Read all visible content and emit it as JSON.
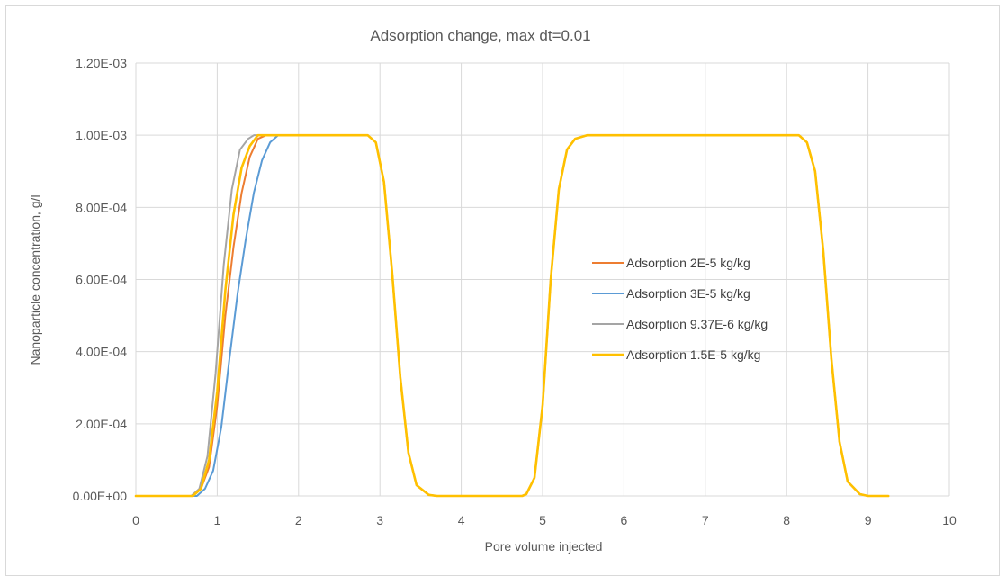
{
  "chart_data": {
    "type": "line",
    "title": "Adsorption change, max dt=0.01",
    "xlabel": "Pore volume injected",
    "ylabel": "Nanoparticle concentration, g/l",
    "xlim": [
      0,
      10
    ],
    "ylim": [
      0,
      0.0012
    ],
    "x_ticks": [
      "0",
      "1",
      "2",
      "3",
      "4",
      "5",
      "6",
      "7",
      "8",
      "9",
      "10"
    ],
    "y_ticks": [
      "0.00E+00",
      "2.00E-04",
      "4.00E-04",
      "6.00E-04",
      "8.00E-04",
      "1.00E-03",
      "1.20E-03"
    ],
    "grid": true,
    "legend_position": "right",
    "series": [
      {
        "name": "Adsorption 2E-5 kg/kg",
        "color": "#ED7D31",
        "points": [
          [
            0,
            0
          ],
          [
            0.7,
            0
          ],
          [
            0.8,
            2e-05
          ],
          [
            0.9,
            8e-05
          ],
          [
            1.0,
            0.00025
          ],
          [
            1.1,
            0.0005
          ],
          [
            1.2,
            0.00069
          ],
          [
            1.3,
            0.00084
          ],
          [
            1.4,
            0.00094
          ],
          [
            1.5,
            0.00099
          ],
          [
            1.6,
            0.001
          ],
          [
            2.85,
            0.001
          ],
          [
            2.95,
            0.00098
          ],
          [
            3.05,
            0.00087
          ],
          [
            3.15,
            0.00062
          ],
          [
            3.25,
            0.00033
          ],
          [
            3.35,
            0.00012
          ],
          [
            3.45,
            3e-05
          ],
          [
            3.6,
            3e-06
          ],
          [
            3.7,
            0
          ],
          [
            4.75,
            0
          ],
          [
            4.8,
            5e-06
          ],
          [
            4.9,
            5e-05
          ],
          [
            5.0,
            0.00025
          ],
          [
            5.1,
            0.0006
          ],
          [
            5.2,
            0.00085
          ],
          [
            5.3,
            0.00096
          ],
          [
            5.4,
            0.00099
          ],
          [
            5.55,
            0.001
          ],
          [
            8.15,
            0.001
          ],
          [
            8.25,
            0.00098
          ],
          [
            8.35,
            0.0009
          ],
          [
            8.45,
            0.00068
          ],
          [
            8.55,
            0.00038
          ],
          [
            8.65,
            0.00015
          ],
          [
            8.75,
            4e-05
          ],
          [
            8.9,
            5e-06
          ],
          [
            9.0,
            0
          ],
          [
            9.25,
            0
          ]
        ]
      },
      {
        "name": "Adsorption 3E-5 kg/kg",
        "color": "#5B9BD5",
        "points": [
          [
            0,
            0
          ],
          [
            0.75,
            0
          ],
          [
            0.85,
            2e-05
          ],
          [
            0.95,
            7e-05
          ],
          [
            1.05,
            0.00019
          ],
          [
            1.15,
            0.00038
          ],
          [
            1.25,
            0.00056
          ],
          [
            1.35,
            0.00071
          ],
          [
            1.45,
            0.00084
          ],
          [
            1.55,
            0.00093
          ],
          [
            1.65,
            0.00098
          ],
          [
            1.75,
            0.001
          ],
          [
            2.85,
            0.001
          ],
          [
            2.95,
            0.00098
          ],
          [
            3.05,
            0.00087
          ],
          [
            3.15,
            0.00062
          ],
          [
            3.25,
            0.00033
          ],
          [
            3.35,
            0.00012
          ],
          [
            3.45,
            3e-05
          ],
          [
            3.6,
            3e-06
          ],
          [
            3.7,
            0
          ],
          [
            4.75,
            0
          ],
          [
            4.8,
            5e-06
          ],
          [
            4.9,
            5e-05
          ],
          [
            5.0,
            0.00025
          ],
          [
            5.1,
            0.0006
          ],
          [
            5.2,
            0.00085
          ],
          [
            5.3,
            0.00096
          ],
          [
            5.4,
            0.00099
          ],
          [
            5.55,
            0.001
          ],
          [
            8.15,
            0.001
          ],
          [
            8.25,
            0.00098
          ],
          [
            8.35,
            0.0009
          ],
          [
            8.45,
            0.00068
          ],
          [
            8.55,
            0.00038
          ],
          [
            8.65,
            0.00015
          ],
          [
            8.75,
            4e-05
          ],
          [
            8.9,
            5e-06
          ],
          [
            9.0,
            0
          ],
          [
            9.25,
            0
          ]
        ]
      },
      {
        "name": "Adsorption 9.37E-6 kg/kg",
        "color": "#A5A5A5",
        "points": [
          [
            0,
            0
          ],
          [
            0.68,
            0
          ],
          [
            0.78,
            2e-05
          ],
          [
            0.88,
            0.00011
          ],
          [
            0.98,
            0.00034
          ],
          [
            1.08,
            0.00064
          ],
          [
            1.18,
            0.00085
          ],
          [
            1.28,
            0.00096
          ],
          [
            1.38,
            0.00099
          ],
          [
            1.45,
            0.001
          ],
          [
            2.85,
            0.001
          ],
          [
            2.95,
            0.00098
          ],
          [
            3.05,
            0.00087
          ],
          [
            3.15,
            0.00062
          ],
          [
            3.25,
            0.00033
          ],
          [
            3.35,
            0.00012
          ],
          [
            3.45,
            3e-05
          ],
          [
            3.6,
            3e-06
          ],
          [
            3.7,
            0
          ],
          [
            4.75,
            0
          ],
          [
            4.8,
            5e-06
          ],
          [
            4.9,
            5e-05
          ],
          [
            5.0,
            0.00025
          ],
          [
            5.1,
            0.0006
          ],
          [
            5.2,
            0.00085
          ],
          [
            5.3,
            0.00096
          ],
          [
            5.4,
            0.00099
          ],
          [
            5.55,
            0.001
          ],
          [
            8.15,
            0.001
          ],
          [
            8.25,
            0.00098
          ],
          [
            8.35,
            0.0009
          ],
          [
            8.45,
            0.00068
          ],
          [
            8.55,
            0.00038
          ],
          [
            8.65,
            0.00015
          ],
          [
            8.75,
            4e-05
          ],
          [
            8.9,
            5e-06
          ],
          [
            9.0,
            0
          ],
          [
            9.25,
            0
          ]
        ]
      },
      {
        "name": "Adsorption 1.5E-5 kg/kg",
        "color": "#FFC000",
        "points": [
          [
            0,
            0
          ],
          [
            0.7,
            0
          ],
          [
            0.8,
            2e-05
          ],
          [
            0.9,
            0.0001
          ],
          [
            1.0,
            0.00029
          ],
          [
            1.1,
            0.00057
          ],
          [
            1.2,
            0.00078
          ],
          [
            1.3,
            0.00091
          ],
          [
            1.4,
            0.00097
          ],
          [
            1.5,
            0.001
          ],
          [
            2.85,
            0.001
          ],
          [
            2.95,
            0.00098
          ],
          [
            3.05,
            0.00087
          ],
          [
            3.15,
            0.00062
          ],
          [
            3.25,
            0.00033
          ],
          [
            3.35,
            0.00012
          ],
          [
            3.45,
            3e-05
          ],
          [
            3.6,
            3e-06
          ],
          [
            3.7,
            0
          ],
          [
            4.75,
            0
          ],
          [
            4.8,
            5e-06
          ],
          [
            4.9,
            5e-05
          ],
          [
            5.0,
            0.00025
          ],
          [
            5.1,
            0.0006
          ],
          [
            5.2,
            0.00085
          ],
          [
            5.3,
            0.00096
          ],
          [
            5.4,
            0.00099
          ],
          [
            5.55,
            0.001
          ],
          [
            8.15,
            0.001
          ],
          [
            8.25,
            0.00098
          ],
          [
            8.35,
            0.0009
          ],
          [
            8.45,
            0.00068
          ],
          [
            8.55,
            0.00038
          ],
          [
            8.65,
            0.00015
          ],
          [
            8.75,
            4e-05
          ],
          [
            8.9,
            5e-06
          ],
          [
            9.0,
            0
          ],
          [
            9.25,
            0
          ]
        ]
      }
    ]
  },
  "colors": {
    "gridline": "#D9D9D9",
    "frame": "#D9D9D9",
    "text": "#595959"
  }
}
